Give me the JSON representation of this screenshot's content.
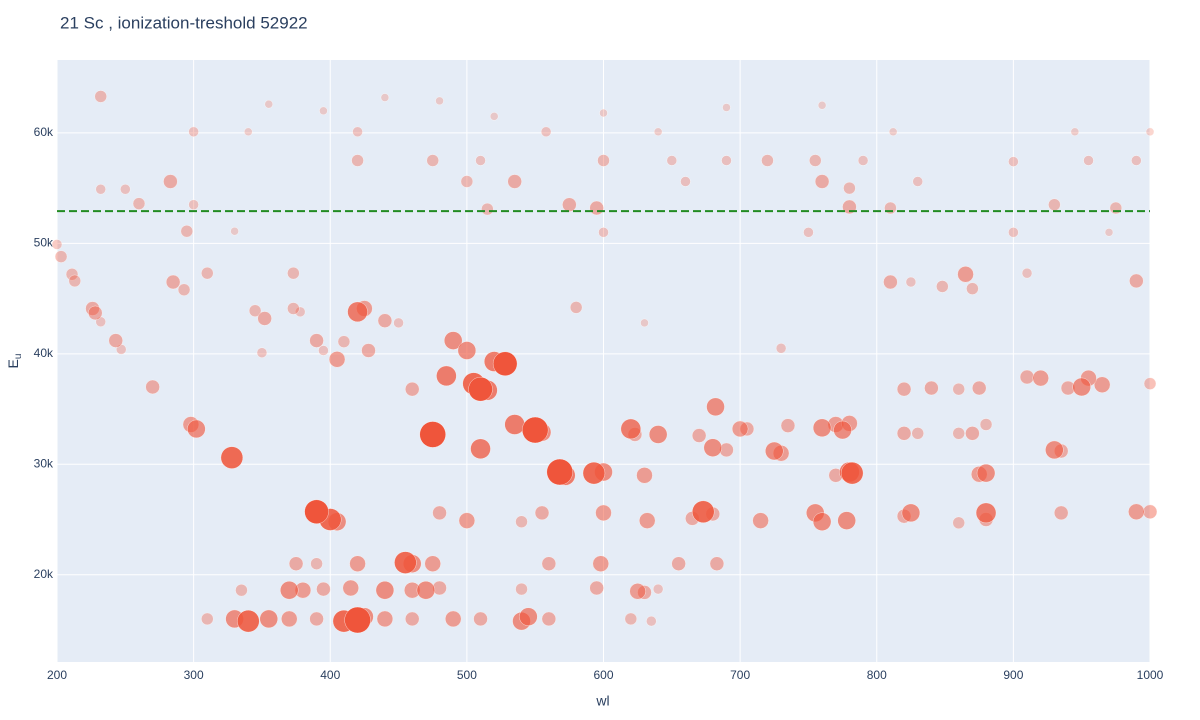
{
  "chart_data": {
    "type": "scatter",
    "title": "21 Sc , ionization-treshold 52922",
    "x_label": "wl",
    "y_label": "E",
    "y_label_subscript": "u",
    "color": "#ef553b",
    "threshold": 52922,
    "threshold_color": "#228b22",
    "xlim": [
      200,
      1000
    ],
    "xticks": [
      200,
      300,
      400,
      500,
      600,
      700,
      800,
      900,
      1000
    ],
    "ylim": [
      12100,
      66600
    ],
    "yticks": [
      {
        "value": 20000,
        "label": "20k"
      },
      {
        "value": 30000,
        "label": "30k"
      },
      {
        "value": 40000,
        "label": "40k"
      },
      {
        "value": 50000,
        "label": "50k"
      },
      {
        "value": 60000,
        "label": "60k"
      }
    ],
    "grid": true,
    "x": [
      200,
      203,
      211,
      213,
      226,
      228,
      232,
      243,
      247,
      270,
      298,
      302,
      328,
      285,
      293,
      310,
      345,
      352,
      350,
      373,
      378,
      390,
      395,
      373,
      405,
      410,
      420,
      425,
      428,
      440,
      450,
      485,
      490,
      500,
      505,
      510,
      515,
      520,
      528,
      460,
      475,
      510,
      535,
      550,
      555,
      568,
      572,
      593,
      600,
      630,
      640,
      620,
      623,
      682,
      670,
      680,
      690,
      700,
      705,
      725,
      730,
      735,
      760,
      770,
      775,
      780,
      780,
      782,
      770,
      820,
      830,
      860,
      870,
      880,
      875,
      880,
      930,
      935,
      920,
      910,
      940,
      950,
      965,
      955,
      875,
      860,
      820,
      840,
      1000,
      390,
      400,
      405,
      480,
      500,
      540,
      555,
      600,
      632,
      665,
      673,
      680,
      715,
      755,
      760,
      778,
      825,
      820,
      860,
      880,
      880,
      935,
      990,
      1000,
      375,
      390,
      420,
      455,
      460,
      475,
      560,
      598,
      655,
      683,
      335,
      370,
      380,
      395,
      415,
      440,
      460,
      470,
      480,
      540,
      595,
      625,
      630,
      640,
      310,
      330,
      340,
      355,
      370,
      390,
      410,
      420,
      425,
      440,
      460,
      490,
      510,
      540,
      545,
      560,
      620,
      635,
      232,
      300,
      355,
      395,
      420,
      480,
      520,
      558,
      600,
      640,
      690,
      760,
      812,
      945,
      1000,
      420,
      475,
      510,
      600,
      650,
      690,
      720,
      755,
      790,
      900,
      955,
      990,
      232,
      250,
      283,
      500,
      535,
      660,
      760,
      780,
      830,
      260,
      300,
      515,
      575,
      595,
      780,
      810,
      930,
      975,
      295,
      330,
      600,
      750,
      900,
      970,
      580,
      630,
      730,
      810,
      825,
      848,
      865,
      870,
      910,
      990,
      340,
      440
    ],
    "values": [
      49900,
      48800,
      47200,
      46600,
      44100,
      43700,
      42900,
      41200,
      40400,
      37000,
      33600,
      33200,
      30600,
      46500,
      45800,
      47300,
      43900,
      43200,
      40100,
      44100,
      43800,
      41200,
      40300,
      47300,
      39500,
      41100,
      43800,
      44100,
      40300,
      43000,
      42800,
      38000,
      41200,
      40300,
      37300,
      36800,
      36700,
      39300,
      39100,
      36800,
      32700,
      31400,
      33600,
      33100,
      32900,
      29300,
      29000,
      29200,
      29300,
      29000,
      32700,
      33200,
      32700,
      35200,
      32600,
      31500,
      31300,
      33200,
      33200,
      31200,
      31000,
      33500,
      33300,
      33600,
      33100,
      33700,
      29300,
      29200,
      29000,
      32800,
      32800,
      32800,
      32800,
      33600,
      29100,
      29200,
      31300,
      31200,
      37800,
      37900,
      36900,
      37000,
      37200,
      37800,
      36900,
      36800,
      36800,
      36900,
      37300,
      25700,
      25000,
      24800,
      25600,
      24900,
      24800,
      25600,
      25600,
      24900,
      25100,
      25700,
      25500,
      24900,
      25600,
      24800,
      24900,
      25600,
      25300,
      24700,
      25600,
      25000,
      25600,
      25700,
      25700,
      21000,
      21000,
      21000,
      21100,
      21000,
      21000,
      21000,
      21000,
      21000,
      21000,
      18600,
      18600,
      18600,
      18700,
      18800,
      18600,
      18600,
      18600,
      18800,
      18700,
      18800,
      18500,
      18400,
      18700,
      16000,
      16000,
      15800,
      16000,
      16000,
      16000,
      15800,
      15900,
      16200,
      16000,
      16000,
      16000,
      16000,
      15800,
      16200,
      16000,
      16000,
      15800,
      63300,
      60100,
      62600,
      62000,
      60100,
      62900,
      61500,
      60100,
      61800,
      60100,
      62300,
      62500,
      60100,
      60100,
      60100,
      57500,
      57500,
      57500,
      57500,
      57500,
      57500,
      57500,
      57500,
      57500,
      57400,
      57500,
      57500,
      54900,
      54900,
      55600,
      55600,
      55600,
      55600,
      55600,
      55000,
      55600,
      53600,
      53500,
      53100,
      53500,
      53200,
      53300,
      53200,
      53500,
      53200,
      51100,
      51100,
      51000,
      51000,
      51000,
      51000,
      44200,
      42800,
      40500,
      46500,
      46500,
      46100,
      47200,
      45900,
      47300,
      46600,
      60100,
      63200
    ],
    "sizes": [
      10,
      12,
      12,
      12,
      14,
      14,
      10,
      14,
      10,
      14,
      16,
      18,
      22,
      14,
      12,
      12,
      12,
      14,
      10,
      12,
      10,
      14,
      10,
      12,
      16,
      12,
      20,
      16,
      14,
      14,
      10,
      20,
      18,
      18,
      22,
      24,
      20,
      20,
      24,
      14,
      26,
      20,
      20,
      26,
      18,
      26,
      20,
      22,
      18,
      16,
      18,
      20,
      14,
      18,
      14,
      18,
      14,
      16,
      14,
      18,
      16,
      14,
      18,
      16,
      18,
      16,
      20,
      22,
      14,
      14,
      12,
      12,
      14,
      12,
      16,
      18,
      18,
      14,
      16,
      14,
      14,
      18,
      16,
      16,
      14,
      12,
      14,
      14,
      12,
      24,
      22,
      18,
      14,
      16,
      12,
      14,
      16,
      16,
      14,
      22,
      14,
      16,
      18,
      18,
      18,
      18,
      14,
      12,
      20,
      14,
      14,
      16,
      14,
      14,
      12,
      16,
      22,
      18,
      16,
      14,
      16,
      14,
      14,
      12,
      18,
      16,
      14,
      16,
      18,
      16,
      18,
      14,
      12,
      14,
      16,
      14,
      10,
      12,
      18,
      22,
      18,
      16,
      14,
      22,
      26,
      18,
      16,
      14,
      16,
      14,
      18,
      18,
      14,
      12,
      10,
      12,
      10,
      8,
      8,
      10,
      8,
      8,
      10,
      8,
      8,
      8,
      8,
      8,
      8,
      8,
      12,
      12,
      10,
      12,
      10,
      10,
      12,
      12,
      10,
      10,
      10,
      10,
      10,
      10,
      14,
      12,
      14,
      10,
      14,
      12,
      10,
      12,
      10,
      12,
      14,
      14,
      14,
      12,
      12,
      12,
      12,
      8,
      10,
      10,
      10,
      8,
      12,
      8,
      10,
      14,
      10,
      12,
      16,
      12,
      10,
      14,
      8,
      8
    ]
  }
}
